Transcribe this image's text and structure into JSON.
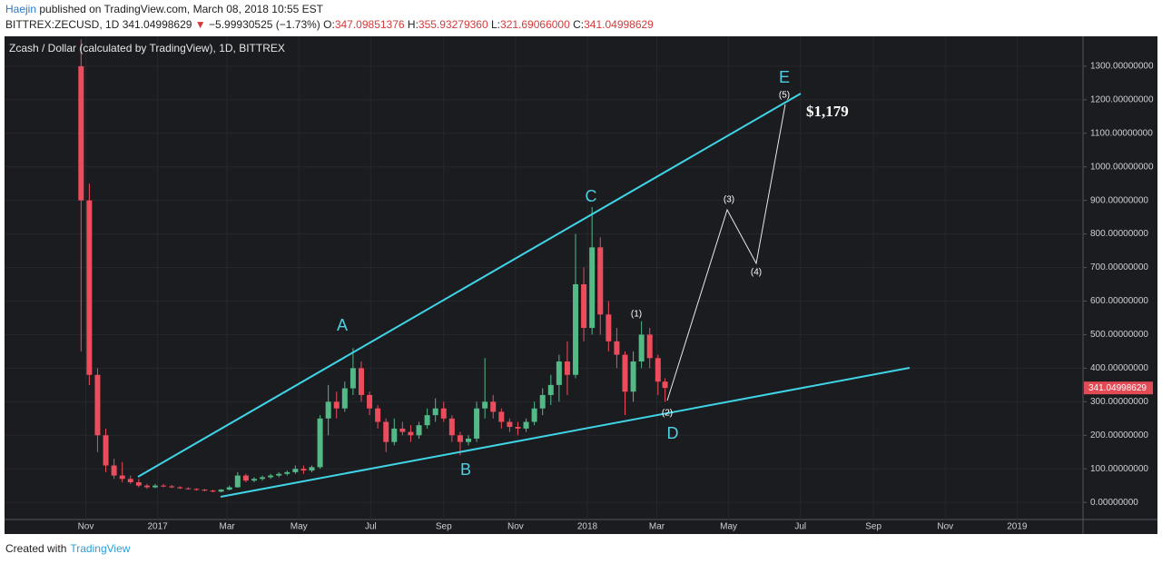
{
  "header": {
    "author": "Haejin",
    "published": " published on TradingView.com, March 08, 2018 10:55 EST",
    "symbol": "BITTREX:ZECUSD, 1D",
    "last": "341.04998629",
    "arrow": "▼",
    "change": "−5.99930525 (−1.73%)",
    "o_label": "O:",
    "o": "347.09851376",
    "h_label": "H:",
    "h": "355.93279360",
    "l_label": "L:",
    "l": "321.69066000",
    "c_label": "C:",
    "c": "341.04998629"
  },
  "footer": {
    "created": "Created with",
    "brand": "TradingView"
  },
  "chart_data": {
    "type": "candlestick",
    "legend": "Zcash / Dollar (calculated by TradingView), 1D, BITTREX",
    "up_color": "#53b987",
    "down_color": "#eb4d5c",
    "price_tag": 341.04998629,
    "xlim": [
      "2016-08-24",
      "2019-02-26"
    ],
    "xticks": [
      {
        "value": "2016-11-01",
        "label": "Nov"
      },
      {
        "value": "2017-01-01",
        "label": "2017"
      },
      {
        "value": "2017-03-01",
        "label": "Mar"
      },
      {
        "value": "2017-05-01",
        "label": "May"
      },
      {
        "value": "2017-07-01",
        "label": "Jul"
      },
      {
        "value": "2017-09-01",
        "label": "Sep"
      },
      {
        "value": "2017-11-01",
        "label": "Nov"
      },
      {
        "value": "2018-01-01",
        "label": "2018"
      },
      {
        "value": "2018-03-01",
        "label": "Mar"
      },
      {
        "value": "2018-05-01",
        "label": "May"
      },
      {
        "value": "2018-07-01",
        "label": "Jul"
      },
      {
        "value": "2018-09-01",
        "label": "Sep"
      },
      {
        "value": "2018-11-01",
        "label": "Nov"
      },
      {
        "value": "2019-01-01",
        "label": "2019"
      }
    ],
    "ylim": [
      -51,
      1389
    ],
    "yticks": [
      {
        "value": 0,
        "label": "0.00000000"
      },
      {
        "value": 100,
        "label": "100.00000000"
      },
      {
        "value": 200,
        "label": "200.00000000"
      },
      {
        "value": 300,
        "label": "300.00000000"
      },
      {
        "value": 400,
        "label": "400.00000000"
      },
      {
        "value": 500,
        "label": "500.00000000"
      },
      {
        "value": 600,
        "label": "600.00000000"
      },
      {
        "value": 700,
        "label": "700.00000000"
      },
      {
        "value": 800,
        "label": "800.00000000"
      },
      {
        "value": 900,
        "label": "900.00000000"
      },
      {
        "value": 1000,
        "label": "1000.00000000"
      },
      {
        "value": 1100,
        "label": "1100.00000000"
      },
      {
        "value": 1200,
        "label": "1200.00000000"
      },
      {
        "value": 1300,
        "label": "1300.00000000"
      }
    ],
    "x": [
      "2016-10-28",
      "2016-11-04",
      "2016-11-11",
      "2016-11-18",
      "2016-11-25",
      "2016-12-02",
      "2016-12-09",
      "2016-12-16",
      "2016-12-23",
      "2016-12-30",
      "2017-01-06",
      "2017-01-13",
      "2017-01-20",
      "2017-01-27",
      "2017-02-03",
      "2017-02-10",
      "2017-02-17",
      "2017-02-24",
      "2017-03-03",
      "2017-03-10",
      "2017-03-17",
      "2017-03-24",
      "2017-03-31",
      "2017-04-07",
      "2017-04-14",
      "2017-04-21",
      "2017-04-28",
      "2017-05-05",
      "2017-05-12",
      "2017-05-19",
      "2017-05-26",
      "2017-06-02",
      "2017-06-09",
      "2017-06-16",
      "2017-06-23",
      "2017-06-30",
      "2017-07-07",
      "2017-07-14",
      "2017-07-21",
      "2017-07-28",
      "2017-08-04",
      "2017-08-11",
      "2017-08-18",
      "2017-08-25",
      "2017-09-01",
      "2017-09-08",
      "2017-09-15",
      "2017-09-22",
      "2017-09-29",
      "2017-10-06",
      "2017-10-13",
      "2017-10-20",
      "2017-10-27",
      "2017-11-03",
      "2017-11-10",
      "2017-11-17",
      "2017-11-24",
      "2017-12-01",
      "2017-12-08",
      "2017-12-15",
      "2017-12-22",
      "2017-12-29",
      "2018-01-05",
      "2018-01-12",
      "2018-01-19",
      "2018-01-26",
      "2018-02-02",
      "2018-02-09",
      "2018-02-16",
      "2018-02-23",
      "2018-03-02",
      "2018-03-08"
    ],
    "open": [
      1300,
      900,
      380,
      200,
      110,
      80,
      70,
      60,
      50,
      45,
      50,
      48,
      45,
      42,
      40,
      38,
      35,
      32,
      38,
      45,
      80,
      65,
      70,
      75,
      80,
      85,
      90,
      100,
      95,
      105,
      250,
      300,
      280,
      340,
      400,
      320,
      280,
      240,
      180,
      220,
      210,
      200,
      230,
      260,
      280,
      250,
      200,
      180,
      190,
      280,
      300,
      270,
      240,
      225,
      220,
      240,
      280,
      320,
      350,
      420,
      380,
      650,
      520,
      760,
      560,
      480,
      440,
      330,
      420,
      500,
      430,
      360
    ],
    "high": [
      1380,
      950,
      400,
      220,
      130,
      120,
      80,
      70,
      55,
      55,
      55,
      52,
      48,
      45,
      42,
      40,
      38,
      40,
      50,
      90,
      85,
      75,
      80,
      85,
      90,
      95,
      110,
      110,
      110,
      260,
      350,
      330,
      360,
      460,
      420,
      330,
      290,
      250,
      250,
      240,
      230,
      240,
      280,
      310,
      300,
      260,
      210,
      200,
      300,
      430,
      320,
      280,
      250,
      240,
      250,
      300,
      340,
      380,
      440,
      480,
      800,
      700,
      880,
      790,
      600,
      520,
      450,
      450,
      540,
      520,
      440,
      370
    ],
    "low": [
      450,
      350,
      150,
      90,
      70,
      60,
      55,
      45,
      40,
      42,
      45,
      42,
      40,
      38,
      35,
      33,
      30,
      30,
      36,
      44,
      60,
      60,
      65,
      70,
      75,
      80,
      85,
      85,
      90,
      100,
      200,
      250,
      270,
      320,
      300,
      260,
      220,
      150,
      170,
      200,
      180,
      190,
      220,
      240,
      240,
      180,
      140,
      170,
      180,
      250,
      250,
      220,
      210,
      200,
      210,
      230,
      260,
      290,
      300,
      320,
      370,
      480,
      500,
      500,
      450,
      400,
      260,
      300,
      400,
      400,
      320,
      300
    ],
    "close": [
      900,
      380,
      200,
      110,
      80,
      70,
      60,
      50,
      45,
      50,
      48,
      45,
      42,
      40,
      38,
      35,
      32,
      38,
      45,
      80,
      65,
      70,
      75,
      80,
      85,
      90,
      100,
      95,
      105,
      250,
      300,
      280,
      340,
      400,
      320,
      280,
      240,
      180,
      220,
      210,
      200,
      230,
      260,
      280,
      250,
      200,
      180,
      190,
      280,
      300,
      270,
      240,
      225,
      220,
      240,
      280,
      320,
      350,
      420,
      380,
      650,
      520,
      760,
      560,
      480,
      440,
      330,
      420,
      500,
      430,
      360,
      341.05
    ],
    "annotations": {
      "A": "A",
      "B": "B",
      "C": "C",
      "D": "D",
      "E": "E",
      "w1": "(1)",
      "w2": "(2)",
      "w3": "(3)",
      "w4": "(4)",
      "w5": "(5)",
      "target": "$1,179"
    }
  }
}
